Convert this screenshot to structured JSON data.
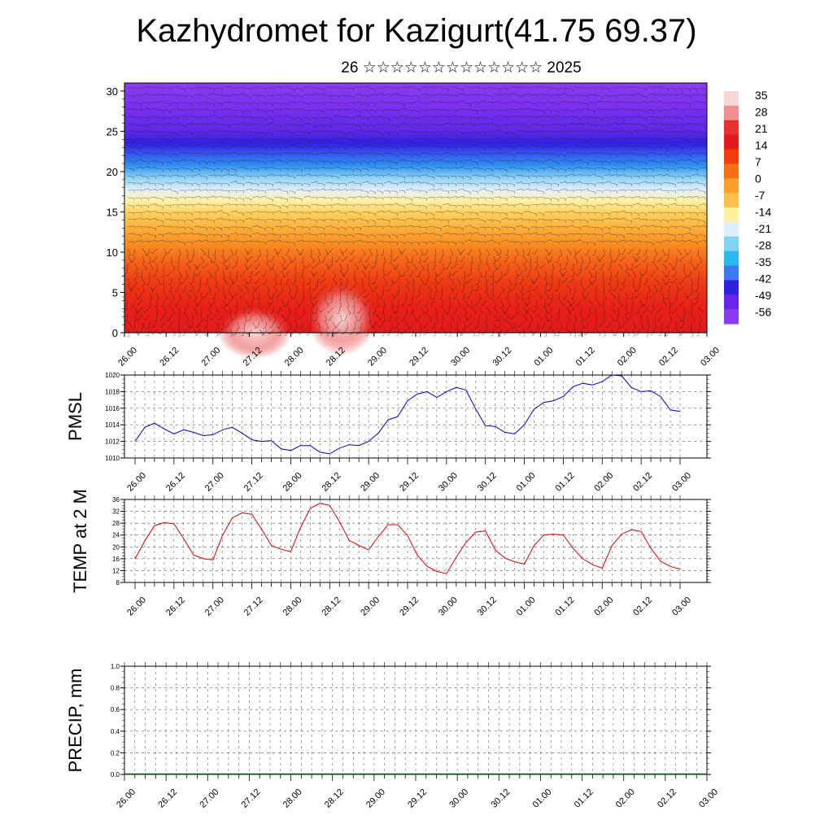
{
  "title": "Kazhydromet for Kazigurt(41.75 69.37)",
  "subtitle": "26 ☆☆☆☆☆☆☆☆☆☆☆☆☆ 2025",
  "time_labels": [
    "26.00",
    "26.12",
    "27.00",
    "27.12",
    "28.00",
    "28.12",
    "29.00",
    "29.12",
    "30.00",
    "30.12",
    "01.00",
    "01.12",
    "02.00",
    "02.12",
    "03.00"
  ],
  "chart_data": [
    {
      "type": "heatmap",
      "name": "vertical-cross-section",
      "ylim": [
        0,
        31
      ],
      "yticks": [
        0,
        5,
        10,
        15,
        20,
        25,
        30
      ],
      "colorbar_labels": [
        "35",
        "28",
        "21",
        "14",
        "7",
        "0",
        "-7",
        "-14",
        "-21",
        "-28",
        "-35",
        "-42",
        "-49",
        "-56"
      ],
      "colorbar_colors": [
        "#f6d6d6",
        "#f09090",
        "#e83030",
        "#e31a1c",
        "#f33c0a",
        "#f87014",
        "#fca02a",
        "#fdc04a",
        "#fff0a0",
        "#ddeeff",
        "#7fd4f4",
        "#2ab8ee",
        "#3c78f0",
        "#3020e0",
        "#6a24e8",
        "#8a3cf0"
      ],
      "overlay": "wind barbs"
    },
    {
      "type": "line",
      "ylabel": "PMSL",
      "ylim": [
        1010,
        1020
      ],
      "yticks": [
        1010,
        1012,
        1014,
        1016,
        1018,
        1020
      ],
      "color": "#0000d0",
      "values": [
        1012.0,
        1013.7,
        1014.2,
        1013.5,
        1012.9,
        1013.4,
        1013.1,
        1012.7,
        1012.8,
        1013.4,
        1013.7,
        1013.0,
        1012.2,
        1012.0,
        1012.1,
        1011.1,
        1010.9,
        1011.5,
        1011.5,
        1010.7,
        1010.5,
        1011.2,
        1011.6,
        1011.5,
        1012.0,
        1013.0,
        1014.6,
        1015.0,
        1016.9,
        1017.7,
        1018.0,
        1017.3,
        1018.0,
        1018.5,
        1018.2,
        1015.9,
        1013.9,
        1013.8,
        1013.1,
        1012.9,
        1014.0,
        1015.9,
        1016.7,
        1016.9,
        1017.4,
        1018.6,
        1019.0,
        1018.8,
        1019.2,
        1020.0,
        1019.9,
        1018.5,
        1018.0,
        1018.1,
        1017.4,
        1015.8,
        1015.6
      ]
    },
    {
      "type": "line",
      "ylabel": "TEMP at 2 M",
      "ylim": [
        8,
        36
      ],
      "yticks": [
        8,
        12,
        16,
        20,
        24,
        28,
        32,
        36
      ],
      "color": "#e00000",
      "values": [
        16.0,
        22.0,
        27.2,
        28.2,
        27.8,
        22.8,
        17.3,
        16.0,
        15.6,
        24.0,
        29.8,
        31.5,
        31.0,
        26.0,
        20.5,
        19.2,
        18.4,
        26.5,
        33.0,
        34.7,
        34.0,
        28.5,
        22.2,
        20.5,
        19.0,
        23.5,
        27.5,
        27.5,
        23.8,
        17.2,
        13.5,
        11.7,
        11.0,
        16.5,
        21.5,
        25.0,
        25.4,
        19.0,
        16.2,
        15.0,
        14.2,
        20.5,
        24.0,
        24.3,
        24.0,
        19.5,
        16.0,
        14.0,
        12.8,
        20.5,
        24.3,
        25.8,
        25.2,
        19.5,
        15.2,
        13.4,
        12.5
      ]
    },
    {
      "type": "bar",
      "ylabel": "PRECIP, mm",
      "ylim": [
        0,
        1
      ],
      "yticks": [
        "0.0",
        "0.2",
        "0.4",
        "0.6",
        "0.8",
        "1.0"
      ],
      "color": "#006400",
      "values": [
        0,
        0,
        0,
        0,
        0,
        0,
        0,
        0,
        0,
        0,
        0,
        0,
        0,
        0,
        0,
        0,
        0,
        0,
        0,
        0,
        0,
        0,
        0,
        0,
        0,
        0,
        0,
        0,
        0,
        0,
        0,
        0,
        0,
        0,
        0,
        0,
        0,
        0,
        0,
        0,
        0,
        0,
        0,
        0,
        0,
        0,
        0,
        0,
        0,
        0,
        0,
        0,
        0,
        0,
        0,
        0,
        0
      ]
    }
  ]
}
